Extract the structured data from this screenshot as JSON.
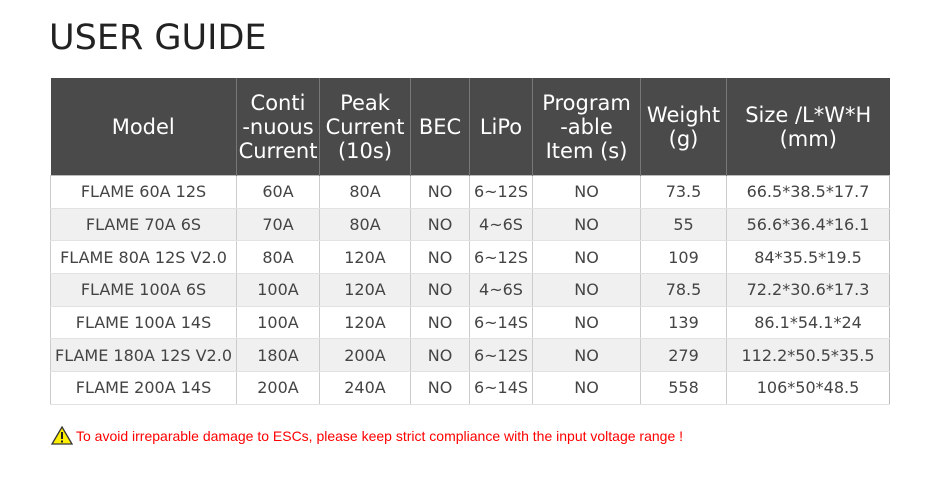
{
  "title": "USER GUIDE",
  "headers": [
    [
      "Model"
    ],
    [
      "Conti",
      "-nuous",
      "Current"
    ],
    [
      "Peak",
      "Current",
      "(10s)"
    ],
    [
      "BEC"
    ],
    [
      "LiPo"
    ],
    [
      "Program",
      "-able",
      "Item (s)"
    ],
    [
      "Weight",
      "(g)"
    ],
    [
      "Size /L*W*H",
      "(mm)"
    ]
  ],
  "rows": [
    [
      "FLAME 60A 12S",
      "60A",
      "80A",
      "NO",
      "6~12S",
      "NO",
      "73.5",
      "66.5*38.5*17.7"
    ],
    [
      "FLAME 70A 6S",
      "70A",
      "80A",
      "NO",
      "4~6S",
      "NO",
      "55",
      "56.6*36.4*16.1"
    ],
    [
      "FLAME 80A 12S V2.0",
      "80A",
      "120A",
      "NO",
      "6~12S",
      "NO",
      "109",
      "84*35.5*19.5"
    ],
    [
      "FLAME 100A 6S",
      "100A",
      "120A",
      "NO",
      "4~6S",
      "NO",
      "78.5",
      "72.2*30.6*17.3"
    ],
    [
      "FLAME 100A 14S",
      "100A",
      "120A",
      "NO",
      "6~14S",
      "NO",
      "139",
      "86.1*54.1*24"
    ],
    [
      "FLAME 180A 12S V2.0",
      "180A",
      "200A",
      "NO",
      "6~12S",
      "NO",
      "279",
      "112.2*50.5*35.5"
    ],
    [
      "FLAME 200A 14S",
      "200A",
      "240A",
      "NO",
      "6~14S",
      "NO",
      "558",
      "106*50*48.5"
    ]
  ],
  "warning": {
    "icon": "warning-triangle-icon",
    "text": "To avoid irreparable damage to ESCs, please keep strict compliance with the input voltage range !",
    "color": "#ff0000"
  }
}
